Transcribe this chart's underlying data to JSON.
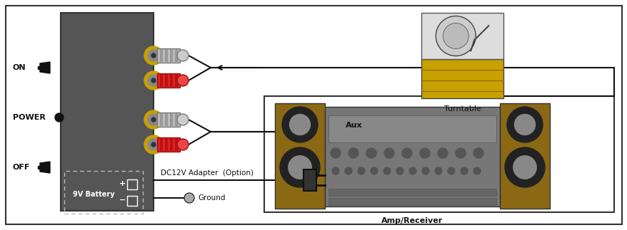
{
  "bg_color": "#ffffff",
  "border_color": "#333333",
  "unit_color": "#555555",
  "gold_color": "#c8a000",
  "red_color": "#cc2222",
  "gray_plug_color": "#aaaaaa",
  "wire_color": "#111111",
  "speaker_color": "#8B6914",
  "rcvr_color": "#777777",
  "turntable_gold": "#c8a000",
  "turntable_lid": "#dddddd",
  "white": "#ffffff",
  "text_on": "ON",
  "text_power": "POWER",
  "text_off": "OFF",
  "text_battery": "9V Battery",
  "text_turntable": "Turntable",
  "text_amp": "Amp/Receiver",
  "text_aux": "Aux",
  "text_dc": "DC12V Adapter  (Option)",
  "text_ground": "Ground"
}
